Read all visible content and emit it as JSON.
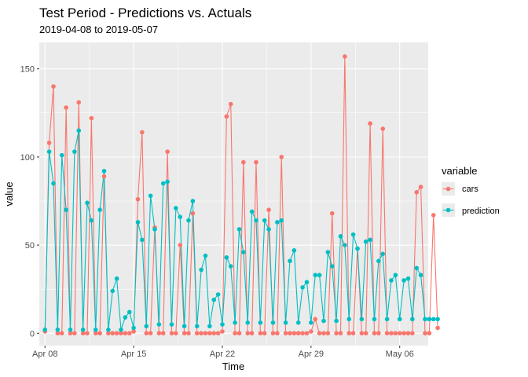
{
  "chart_data": {
    "type": "line",
    "title": "Test Period - Predictions vs. Actuals",
    "subtitle": "2019-04-08 to 2019-05-07",
    "xlabel": "Time",
    "ylabel": "value",
    "ylim": [
      -7,
      165
    ],
    "yticks": [
      0,
      50,
      100,
      150
    ],
    "x_start": "2019-04-08",
    "x_step_hours": 8,
    "xlim_days": [
      -0.45,
      30.25
    ],
    "xticks": [
      {
        "label": "Apr 08",
        "day": 0
      },
      {
        "label": "Apr 15",
        "day": 7
      },
      {
        "label": "Apr 22",
        "day": 14
      },
      {
        "label": "Apr 29",
        "day": 21
      },
      {
        "label": "May 06",
        "day": 28
      }
    ],
    "grid": true,
    "legend": {
      "title": "variable",
      "position": "right"
    },
    "series": [
      {
        "name": "cars",
        "color": "#F8766D",
        "values": [
          1,
          108,
          140,
          0,
          0,
          128,
          0,
          0,
          131,
          0,
          0,
          122,
          0,
          0,
          89,
          0,
          0,
          0,
          0,
          0,
          0,
          1,
          76,
          114,
          0,
          0,
          60,
          0,
          0,
          103,
          0,
          0,
          50,
          0,
          0,
          68,
          0,
          0,
          0,
          0,
          0,
          0,
          1,
          123,
          130,
          0,
          0,
          97,
          0,
          0,
          97,
          0,
          0,
          70,
          0,
          0,
          100,
          0,
          0,
          0,
          0,
          0,
          0,
          1,
          8,
          0,
          0,
          0,
          68,
          0,
          0,
          157,
          0,
          0,
          48,
          0,
          0,
          119,
          0,
          0,
          116,
          0,
          0,
          0,
          0,
          0,
          0,
          0,
          80,
          83,
          0,
          0,
          67,
          3
        ]
      },
      {
        "name": "prediction",
        "color": "#00BFC4",
        "values": [
          2,
          103,
          85,
          2,
          101,
          70,
          2,
          103,
          115,
          2,
          74,
          64,
          2,
          70,
          92,
          2,
          24,
          31,
          2,
          9,
          12,
          3,
          63,
          53,
          4,
          78,
          59,
          5,
          85,
          86,
          5,
          71,
          66,
          4,
          64,
          75,
          4,
          36,
          44,
          4,
          19,
          22,
          5,
          43,
          38,
          6,
          59,
          46,
          6,
          69,
          64,
          6,
          64,
          59,
          6,
          63,
          64,
          6,
          41,
          47,
          6,
          26,
          29,
          6,
          33,
          33,
          7,
          46,
          38,
          7,
          55,
          50,
          8,
          56,
          48,
          8,
          52,
          53,
          8,
          41,
          45,
          8,
          30,
          33,
          8,
          30,
          31,
          8,
          37,
          33,
          8,
          8,
          8,
          8
        ]
      }
    ]
  }
}
